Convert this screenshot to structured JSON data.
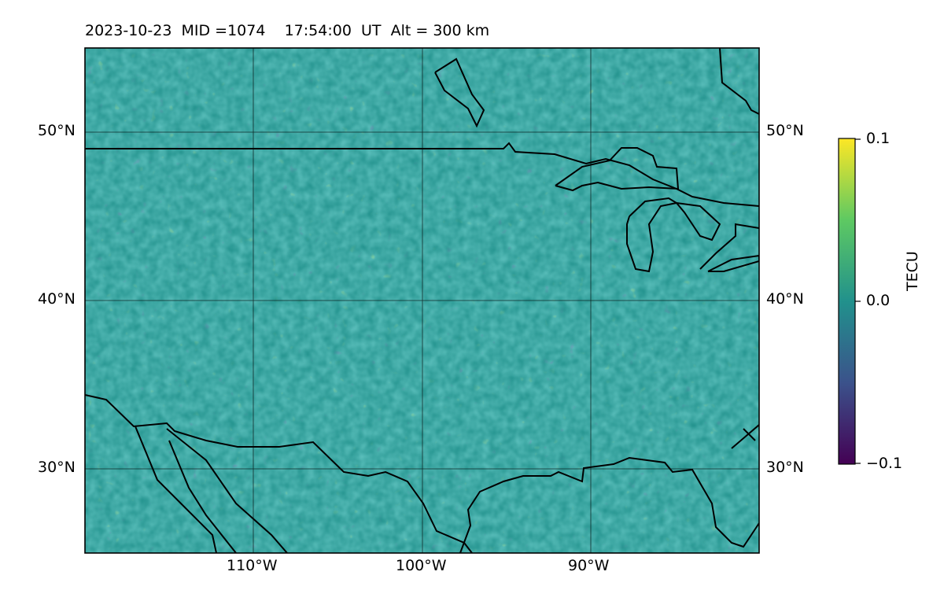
{
  "title": "2023-10-23  MID =1074    17:54:00  UT  Alt = 300 km",
  "map": {
    "lat_labels": [
      "50°N",
      "40°N",
      "30°N"
    ],
    "lon_labels": [
      "110°W",
      "100°W",
      "90°W"
    ],
    "lat_range": [
      25,
      55
    ],
    "lon_range": [
      -120,
      -80
    ],
    "gridlines": true
  },
  "colorbar": {
    "label": "TECU",
    "ticks": [
      "0.1",
      "0.0",
      "−0.1"
    ],
    "min": -0.1,
    "max": 0.1,
    "colormap": "viridis",
    "colors": [
      "#440154",
      "#3b528b",
      "#21918c",
      "#5ec962",
      "#fde725"
    ]
  }
}
